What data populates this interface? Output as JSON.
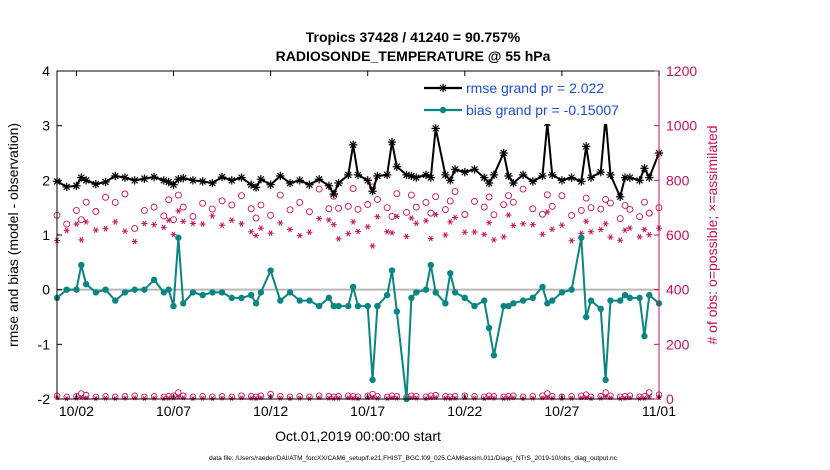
{
  "chart_data": {
    "type": "line",
    "title": "Tropics 37428 / 41240 = 90.757%",
    "subtitle": "RADIOSONDE_TEMPERATURE @ 55 hPa",
    "xlabel": "Oct.01,2019 00:00:00 start",
    "ylabel": "rmse and bias (model - observation)",
    "ylabel_right": "# of obs: o=possible; ×=assimilated",
    "xlim": [
      1,
      32
    ],
    "ylim": [
      -2,
      4
    ],
    "ylim_right": [
      0,
      1200
    ],
    "x_ticks": [
      2,
      7,
      12,
      17,
      22,
      27,
      32
    ],
    "x_tick_labels": [
      "10/02",
      "10/07",
      "10/12",
      "10/17",
      "10/22",
      "10/27",
      "11/01"
    ],
    "y_ticks": [
      "-2",
      "-1",
      "0",
      "1",
      "2",
      "3",
      "4"
    ],
    "y_ticks_right": [
      "0",
      "200",
      "400",
      "600",
      "800",
      "1000",
      "1200"
    ],
    "x": [
      1.0,
      1.5,
      2.0,
      2.25,
      2.5,
      3.0,
      3.5,
      4.0,
      4.5,
      5.0,
      5.5,
      6.0,
      6.5,
      6.75,
      7.0,
      7.25,
      7.5,
      8.0,
      8.5,
      9.0,
      9.5,
      10.0,
      10.5,
      11.0,
      11.25,
      11.5,
      12.0,
      12.5,
      13.0,
      13.5,
      14.0,
      14.5,
      15.0,
      15.25,
      15.5,
      16.0,
      16.25,
      16.5,
      17.0,
      17.25,
      17.5,
      18.0,
      18.25,
      18.5,
      19.0,
      19.25,
      19.5,
      20.0,
      20.25,
      20.5,
      21.0,
      21.25,
      21.5,
      22.0,
      22.5,
      23.0,
      23.25,
      23.5,
      24.0,
      24.25,
      24.5,
      25.0,
      25.5,
      26.0,
      26.25,
      26.5,
      27.0,
      27.5,
      28.0,
      28.25,
      28.5,
      29.0,
      29.25,
      29.5,
      30.0,
      30.25,
      30.5,
      31.0,
      31.25,
      31.5,
      32.0
    ],
    "series": [
      {
        "name": "rmse grand pr = 2.022",
        "color": "#000000",
        "values": [
          1.98,
          1.88,
          1.9,
          2.05,
          2.0,
          1.93,
          1.97,
          2.08,
          2.05,
          2.0,
          2.03,
          2.06,
          2.0,
          1.97,
          1.92,
          2.02,
          2.04,
          2.0,
          1.98,
          1.95,
          2.06,
          2.0,
          2.05,
          1.92,
          1.87,
          2.02,
          1.92,
          2.08,
          1.95,
          2.0,
          1.92,
          2.02,
          1.9,
          1.75,
          1.95,
          2.1,
          2.65,
          2.1,
          2.0,
          1.8,
          2.08,
          2.1,
          2.7,
          2.25,
          2.1,
          2.08,
          2.05,
          2.1,
          2.05,
          2.95,
          2.1,
          2.0,
          2.2,
          2.15,
          2.2,
          2.05,
          1.95,
          2.1,
          2.5,
          2.08,
          1.95,
          2.1,
          1.98,
          2.08,
          3.05,
          2.1,
          2.0,
          2.05,
          1.98,
          2.62,
          2.05,
          2.15,
          3.15,
          2.1,
          1.7,
          2.05,
          2.05,
          2.0,
          2.22,
          2.05,
          2.5
        ]
      },
      {
        "name": "bias grand pr = -0.15007",
        "color": "#0a8582",
        "values": [
          -0.15,
          0.0,
          0.0,
          0.45,
          0.1,
          -0.05,
          0.0,
          -0.2,
          -0.05,
          0.0,
          0.0,
          0.18,
          -0.05,
          0.0,
          -0.3,
          0.95,
          -0.25,
          -0.05,
          -0.1,
          -0.05,
          -0.05,
          -0.15,
          -0.15,
          -0.1,
          -0.25,
          -0.05,
          0.35,
          -0.2,
          -0.05,
          -0.2,
          -0.2,
          -0.3,
          -0.15,
          -0.3,
          -0.3,
          -0.3,
          0.05,
          -0.3,
          -0.3,
          -1.65,
          -0.3,
          -0.1,
          0.35,
          -0.4,
          -2.0,
          -0.15,
          -0.05,
          0.0,
          0.45,
          -0.05,
          -0.25,
          0.3,
          -0.05,
          -0.15,
          -0.3,
          -0.2,
          -0.7,
          -1.2,
          -0.3,
          -0.3,
          -0.25,
          -0.2,
          -0.15,
          0.05,
          -0.25,
          -0.2,
          -0.05,
          0.0,
          0.95,
          -0.5,
          -0.2,
          -0.35,
          -1.65,
          -0.2,
          -0.2,
          -0.1,
          -0.15,
          -0.15,
          -0.85,
          -0.1,
          -0.25
        ]
      }
    ],
    "counts_possible": [
      672,
      640,
      690,
      656,
      720,
      686,
      738,
      719,
      750,
      624,
      690,
      702,
      670,
      729,
      656,
      746,
      702,
      668,
      716,
      695,
      725,
      710,
      744,
      696,
      662,
      710,
      672,
      746,
      692,
      719,
      685,
      768,
      696,
      742,
      698,
      705,
      770,
      694,
      712,
      776,
      730,
      700,
      668,
      751,
      683,
      746,
      702,
      719,
      680,
      740,
      693,
      724,
      759,
      675,
      723,
      702,
      739,
      674,
      711,
      744,
      720,
      768,
      696,
      676,
      747,
      705,
      744,
      672,
      690,
      735,
      700,
      695,
      730,
      717,
      660,
      708,
      694,
      667,
      720,
      680,
      700
    ],
    "counts_assimilated": [
      580,
      616,
      640,
      582,
      648,
      618,
      623,
      648,
      614,
      576,
      642,
      638,
      628,
      654,
      602,
      688,
      650,
      642,
      640,
      670,
      636,
      654,
      641,
      612,
      598,
      625,
      607,
      644,
      620,
      598,
      610,
      660,
      655,
      638,
      586,
      605,
      648,
      613,
      630,
      560,
      667,
      612,
      608,
      668,
      595,
      662,
      643,
      652,
      587,
      675,
      600,
      648,
      664,
      610,
      611,
      602,
      645,
      582,
      593,
      673,
      635,
      641,
      638,
      603,
      684,
      621,
      636,
      579,
      606,
      650,
      612,
      620,
      641,
      592,
      581,
      618,
      625,
      593,
      620,
      601,
      625
    ],
    "counts_low_possible": [
      12,
      8,
      10,
      20,
      14,
      8,
      10,
      8,
      10,
      12,
      8,
      10,
      8,
      10,
      12,
      24,
      12,
      8,
      10,
      8,
      10,
      8,
      12,
      10,
      8,
      12,
      18,
      10,
      8,
      10,
      8,
      12,
      10,
      8,
      10,
      12,
      10,
      8,
      12,
      18,
      10,
      8,
      12,
      10,
      8,
      12,
      10,
      8,
      12,
      14,
      10,
      8,
      10,
      12,
      10,
      8,
      12,
      10,
      8,
      10,
      12,
      8,
      10,
      12,
      20,
      10,
      8,
      10,
      12,
      16,
      8,
      10,
      24,
      12,
      8,
      10,
      12,
      8,
      10,
      24,
      16
    ],
    "counts_low_assimilated": [
      4,
      2,
      3,
      6,
      4,
      2,
      3,
      2,
      3,
      4,
      2,
      3,
      2,
      3,
      4,
      8,
      4,
      2,
      3,
      2,
      3,
      2,
      4,
      3,
      2,
      4,
      6,
      3,
      2,
      3,
      2,
      4,
      3,
      2,
      3,
      4,
      3,
      2,
      4,
      6,
      3,
      2,
      4,
      3,
      2,
      4,
      3,
      2,
      4,
      5,
      3,
      2,
      3,
      4,
      3,
      2,
      4,
      3,
      2,
      3,
      4,
      2,
      3,
      4,
      6,
      3,
      2,
      3,
      4,
      5,
      2,
      3,
      8,
      4,
      2,
      3,
      4,
      2,
      3,
      8,
      5
    ],
    "legend_position": "top-right",
    "footer": "data file: /Users/raeder/DAI/ATM_forcXX/CAM6_setup/f.e21.FHIST_BGC.f09_025.CAM6assim.011/Diags_NTrS_2019-10/obs_diag_output.nc"
  },
  "colors": {
    "rmse": "#000000",
    "bias": "#0a8582",
    "counts": "#c8105a",
    "legend_text": "#1a4fd6",
    "zero_line": "#b8b8b8"
  }
}
